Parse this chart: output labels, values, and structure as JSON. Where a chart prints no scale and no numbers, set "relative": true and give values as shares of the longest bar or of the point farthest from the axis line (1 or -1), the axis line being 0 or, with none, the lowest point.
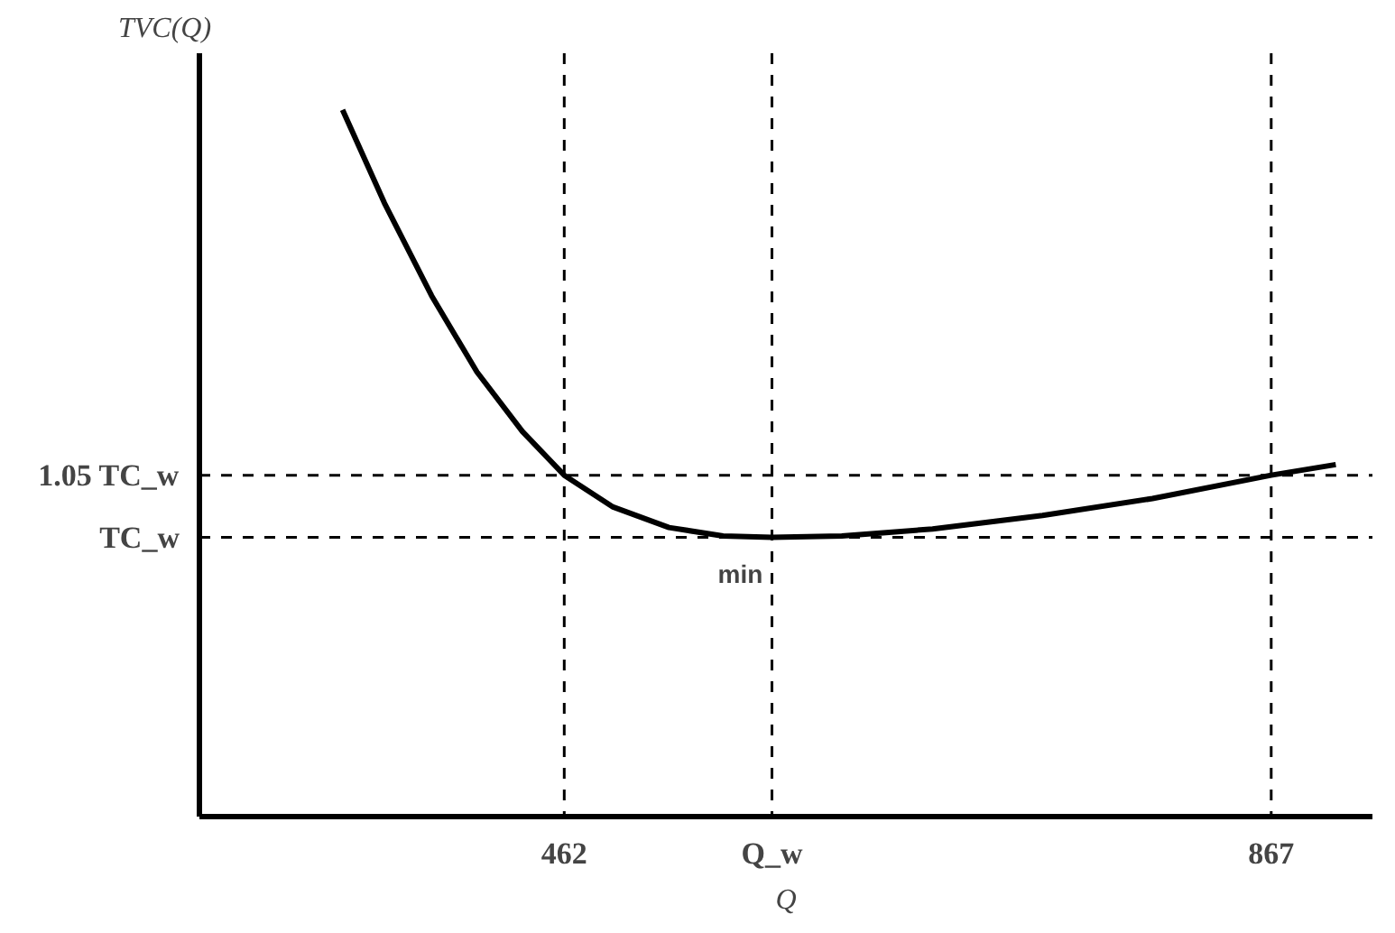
{
  "chart_data": {
    "type": "line",
    "relative": true,
    "xlabel": "Q",
    "ylabel": "TVC(Q)",
    "x": [
      335,
      359,
      386,
      412,
      438,
      462,
      490,
      522,
      553,
      581,
      621,
      673,
      736,
      799,
      867,
      904
    ],
    "series": [
      {
        "color": "#000000",
        "values": [
          1,
          0.868,
          0.737,
          0.629,
          0.545,
          0.483,
          0.438,
          0.409,
          0.397,
          0.395,
          0.397,
          0.407,
          0.426,
          0.45,
          0.483,
          0.498
        ]
      }
    ],
    "xlim": [
      253,
      925
    ],
    "xticks": [
      462,
      {
        "value": 581,
        "label": "Q_w"
      },
      867
    ],
    "ref_lines": [
      {
        "axis": "y",
        "value": 0.483,
        "label": "1.05 TC_w",
        "line_style": "dashed"
      },
      {
        "axis": "y",
        "value": 0.395,
        "label": "TC_w",
        "line_style": "dashed"
      },
      {
        "axis": "x",
        "value": 462,
        "line_style": "dashed"
      },
      {
        "axis": "x",
        "value": 581,
        "line_style": "dashed"
      },
      {
        "axis": "x",
        "value": 867,
        "line_style": "dashed"
      }
    ],
    "annotations": [
      {
        "text": "min",
        "x": 581,
        "y": 0.395
      }
    ],
    "grid": false,
    "marker": "none",
    "line_style": "solid"
  }
}
